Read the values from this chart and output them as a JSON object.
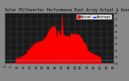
{
  "title": "Solar PV/Inverter Performance East Array Actual & Average Power Output",
  "bg_color": "#404040",
  "plot_bg_color": "#1a1a1a",
  "grid_color": "#888888",
  "bar_color": "#ff0000",
  "avg_line_color": "#00ccff",
  "legend_actual_color": "#ff0000",
  "legend_avg_color": "#0000ff",
  "legend_label_actual": "Actual",
  "legend_label_avg": "Average",
  "ylim": [
    0,
    8
  ],
  "yticks": [
    0,
    1,
    2,
    3,
    4,
    5,
    6,
    7,
    8
  ],
  "num_points": 100,
  "avg_value": 0.55,
  "spike_index": 52,
  "spike_value": 7.8,
  "title_fontsize": 3.5,
  "tick_fontsize": 3.0,
  "legend_fontsize": 3.2,
  "text_color": "#000000",
  "outer_bg": "#888888"
}
